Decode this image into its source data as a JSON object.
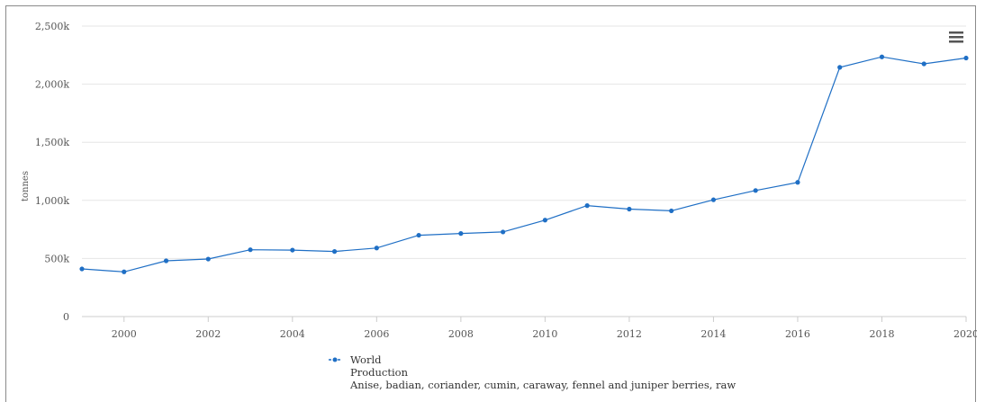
{
  "chart_data": {
    "type": "line",
    "xlabel": "",
    "ylabel": "tonnes",
    "x": [
      1999,
      2000,
      2001,
      2002,
      2003,
      2004,
      2005,
      2006,
      2007,
      2008,
      2009,
      2010,
      2011,
      2012,
      2013,
      2014,
      2015,
      2016,
      2017,
      2018,
      2019,
      2020
    ],
    "ylim": [
      0,
      2500000
    ],
    "yticks": [
      0,
      500000,
      1000000,
      1500000,
      2000000,
      2500000
    ],
    "ytick_labels": [
      "0",
      "500k",
      "1,000k",
      "1,500k",
      "2,000k",
      "2,500k"
    ],
    "xticks": [
      2000,
      2002,
      2004,
      2006,
      2008,
      2010,
      2012,
      2014,
      2016,
      2018,
      2020
    ],
    "xtick_labels": [
      "2000",
      "2002",
      "2004",
      "2006",
      "2008",
      "2010",
      "2012",
      "2014",
      "2016",
      "2018",
      "2020"
    ],
    "grid": true,
    "legend_position": "bottom-left",
    "series": [
      {
        "name": "World",
        "color": "#1f6fc5",
        "values": [
          410000,
          385000,
          480000,
          495000,
          575000,
          572000,
          560000,
          590000,
          700000,
          715000,
          728000,
          830000,
          955000,
          925000,
          910000,
          1005000,
          1085000,
          1155000,
          2145000,
          2235000,
          2175000,
          2225000
        ]
      }
    ],
    "legend": {
      "lines": [
        "World",
        "Production",
        "Anise, badian, coriander, cumin, caraway, fennel and juniper berries, raw"
      ]
    }
  },
  "menu": {
    "icon": "hamburger-menu-icon"
  }
}
